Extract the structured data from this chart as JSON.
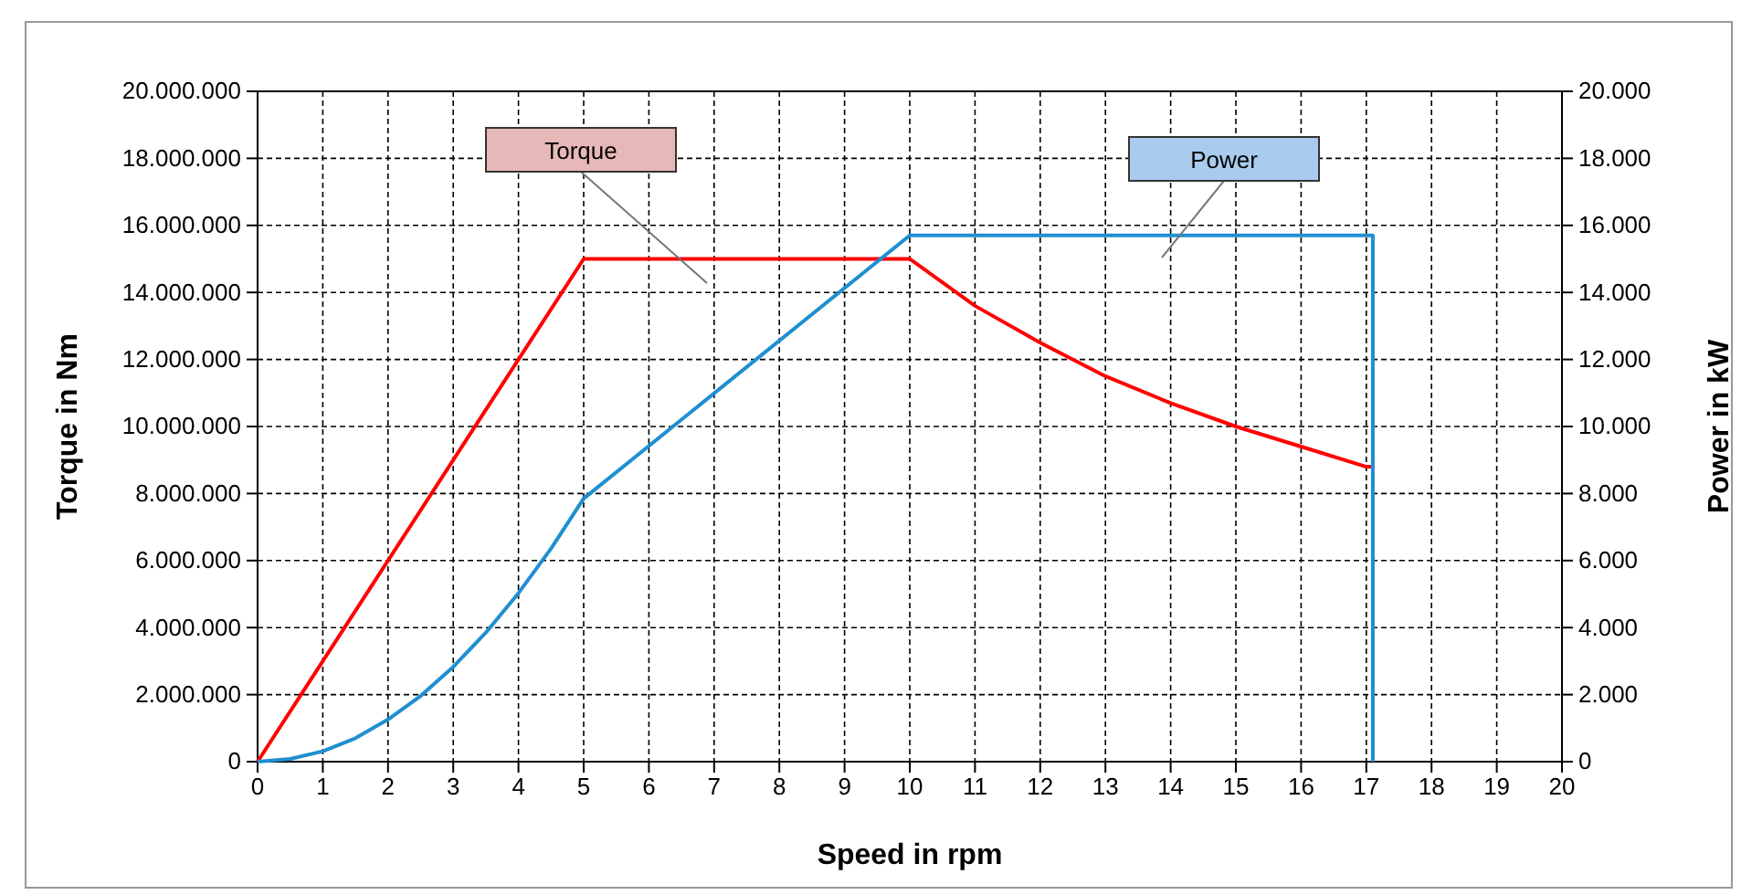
{
  "chart_data": {
    "type": "line",
    "xlabel": "Speed  in  rpm",
    "ylabel": "Torque in Nm",
    "y2label": "Power  in  kW",
    "xlim": [
      0,
      20
    ],
    "xticks": [
      0,
      1,
      2,
      3,
      4,
      5,
      6,
      7,
      8,
      9,
      10,
      11,
      12,
      13,
      14,
      15,
      16,
      17,
      18,
      19,
      20
    ],
    "ylim": [
      0,
      20000000
    ],
    "yticks": [
      0,
      {
        "value": 2000000,
        "label": "2.000.000"
      },
      {
        "value": 4000000,
        "label": "4.000.000"
      },
      {
        "value": 6000000,
        "label": "6.000.000"
      },
      {
        "value": 8000000,
        "label": "8.000.000"
      },
      {
        "value": 10000000,
        "label": "10.000.000"
      },
      {
        "value": 12000000,
        "label": "12.000.000"
      },
      {
        "value": 14000000,
        "label": "14.000.000"
      },
      {
        "value": 16000000,
        "label": "16.000.000"
      },
      {
        "value": 18000000,
        "label": "18.000.000"
      },
      {
        "value": 20000000,
        "label": "20.000.000"
      }
    ],
    "y2lim": [
      0,
      20000
    ],
    "y2ticks": [
      0,
      {
        "value": 2000,
        "label": "2.000"
      },
      {
        "value": 4000,
        "label": "4.000"
      },
      {
        "value": 6000,
        "label": "6.000"
      },
      {
        "value": 8000,
        "label": "8.000"
      },
      {
        "value": 10000,
        "label": "10.000"
      },
      {
        "value": 12000,
        "label": "12.000"
      },
      {
        "value": 14000,
        "label": "14.000"
      },
      {
        "value": 16000,
        "label": "16.000"
      },
      {
        "value": 18000,
        "label": "18.000"
      },
      {
        "value": 20000,
        "label": "20.000"
      }
    ],
    "grid": true,
    "line_style": "solid",
    "series": [
      {
        "color": "#ff0000",
        "x": [
          0,
          5,
          10,
          11,
          12,
          13,
          14,
          15,
          16,
          17,
          17.1
        ],
        "values": [
          0,
          15000000,
          15000000,
          13600000,
          12500000,
          11500000,
          10700000,
          10000000,
          9400000,
          8800000,
          8800000
        ]
      },
      {
        "color": "#1f8fd0",
        "axis": "y2",
        "x": [
          0,
          0.5,
          1,
          1.5,
          2,
          2.5,
          3,
          3.5,
          4,
          4.5,
          5,
          10,
          17.1,
          17.1
        ],
        "values": [
          0,
          80,
          310,
          700,
          1260,
          1960,
          2830,
          3850,
          5030,
          6360,
          7850,
          15700,
          15700,
          0
        ]
      }
    ],
    "annotations": [
      "Torque",
      "Power"
    ]
  }
}
